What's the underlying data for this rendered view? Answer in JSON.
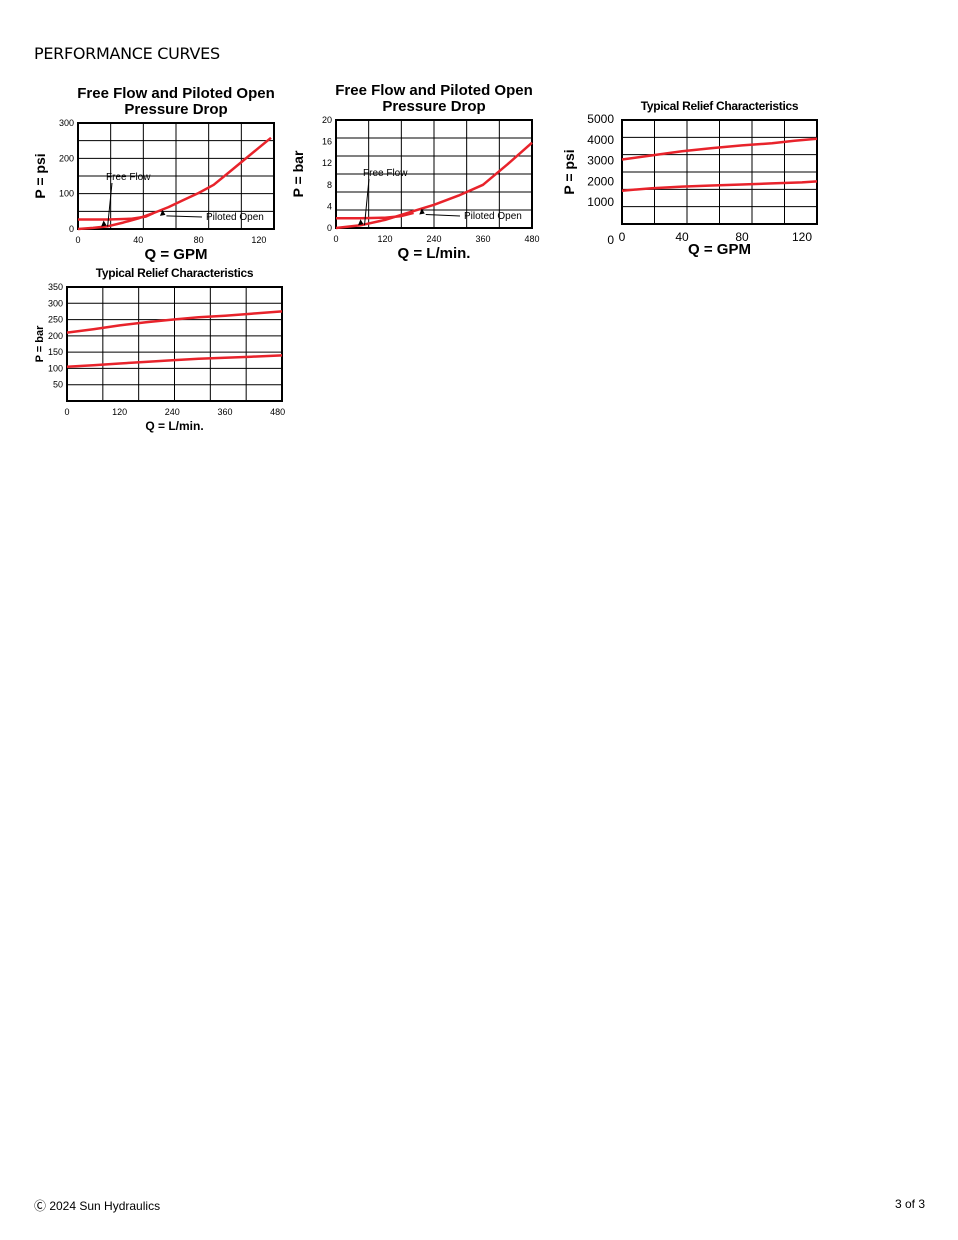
{
  "page": {
    "heading": "PERFORMANCE CURVES",
    "footer_copyright": "Ⓒ 2024 Sun Hydraulics",
    "footer_page": "3 of 3"
  },
  "colors": {
    "curve": "#e8232b",
    "grid": "#000000"
  },
  "chart_data": [
    {
      "type": "line",
      "title": "Free Flow and Piloted Open",
      "subtitle": "Pressure Drop",
      "xlabel": "Q = GPM",
      "ylabel": "P = psi",
      "xlim": [
        0,
        130
      ],
      "ylim": [
        0,
        300
      ],
      "x_ticks": [
        0,
        40,
        80,
        120
      ],
      "y_ticks": [
        0,
        100,
        200,
        300
      ],
      "grid": true,
      "series": [
        {
          "name": "Free Flow",
          "x": [
            0,
            20,
            35,
            45,
            50
          ],
          "y": [
            27,
            27,
            29,
            35,
            45
          ]
        },
        {
          "name": "Piloted Open",
          "x": [
            0,
            10,
            20,
            30,
            40,
            50,
            60,
            70,
            80,
            90,
            100,
            110,
            120,
            128
          ],
          "y": [
            0,
            3,
            8,
            18,
            30,
            45,
            62,
            82,
            102,
            125,
            160,
            195,
            230,
            258
          ]
        }
      ],
      "annotations": [
        {
          "text": "Free Flow",
          "target_x": 17,
          "target_y": 27
        },
        {
          "text": "Piloted Open",
          "target_x": 56,
          "target_y": 57
        }
      ]
    },
    {
      "type": "line",
      "title": "Free Flow and Piloted Open",
      "subtitle": "Pressure Drop",
      "xlabel": "Q = L/min.",
      "ylabel": "P = bar",
      "xlim": [
        0,
        480
      ],
      "ylim": [
        0,
        20
      ],
      "x_ticks": [
        0,
        120,
        240,
        360,
        480
      ],
      "y_ticks": [
        0,
        4,
        8,
        12,
        16,
        20
      ],
      "grid": true,
      "series": [
        {
          "name": "Free Flow",
          "x": [
            0,
            60,
            120,
            160,
            190
          ],
          "y": [
            1.8,
            1.8,
            1.9,
            2.2,
            2.8
          ]
        },
        {
          "name": "Piloted Open",
          "x": [
            0,
            60,
            120,
            180,
            240,
            300,
            360,
            420,
            480
          ],
          "y": [
            0,
            0.5,
            1.5,
            2.9,
            4.3,
            6.0,
            8.0,
            11.8,
            15.8
          ]
        }
      ],
      "annotations": [
        {
          "text": "Free Flow",
          "target_x": 60,
          "target_y": 1.8
        },
        {
          "text": "Piloted Open",
          "target_x": 210,
          "target_y": 3.8
        }
      ]
    },
    {
      "type": "line",
      "title": "Typical Relief Characteristics",
      "xlabel": "Q = GPM",
      "ylabel": "P = psi",
      "xlim": [
        0,
        130
      ],
      "ylim": [
        0,
        5000
      ],
      "x_ticks": [
        0,
        40,
        80,
        120
      ],
      "y_ticks": [
        0,
        1000,
        2000,
        3000,
        4000,
        5000
      ],
      "grid": true,
      "series": [
        {
          "x": [
            0,
            20,
            40,
            60,
            80,
            100,
            115,
            130
          ],
          "y": [
            3100,
            3300,
            3500,
            3650,
            3780,
            3880,
            4000,
            4100
          ]
        },
        {
          "x": [
            0,
            20,
            40,
            60,
            80,
            100,
            120,
            130
          ],
          "y": [
            1600,
            1720,
            1800,
            1850,
            1900,
            1950,
            2000,
            2050
          ]
        }
      ]
    },
    {
      "type": "line",
      "title": "Typical Relief Characteristics",
      "xlabel": "Q = L/min.",
      "ylabel": "P = bar",
      "xlim": [
        0,
        490
      ],
      "ylim": [
        0,
        350
      ],
      "x_ticks": [
        0,
        120,
        240,
        360,
        480
      ],
      "y_ticks": [
        50,
        100,
        150,
        200,
        250,
        300,
        350
      ],
      "grid": true,
      "series": [
        {
          "x": [
            0,
            60,
            120,
            180,
            240,
            300,
            360,
            420,
            490
          ],
          "y": [
            210,
            220,
            232,
            242,
            250,
            257,
            262,
            268,
            275
          ]
        },
        {
          "x": [
            0,
            60,
            120,
            180,
            240,
            300,
            360,
            420,
            490
          ],
          "y": [
            105,
            110,
            115,
            120,
            125,
            130,
            133,
            136,
            140
          ]
        }
      ]
    }
  ]
}
